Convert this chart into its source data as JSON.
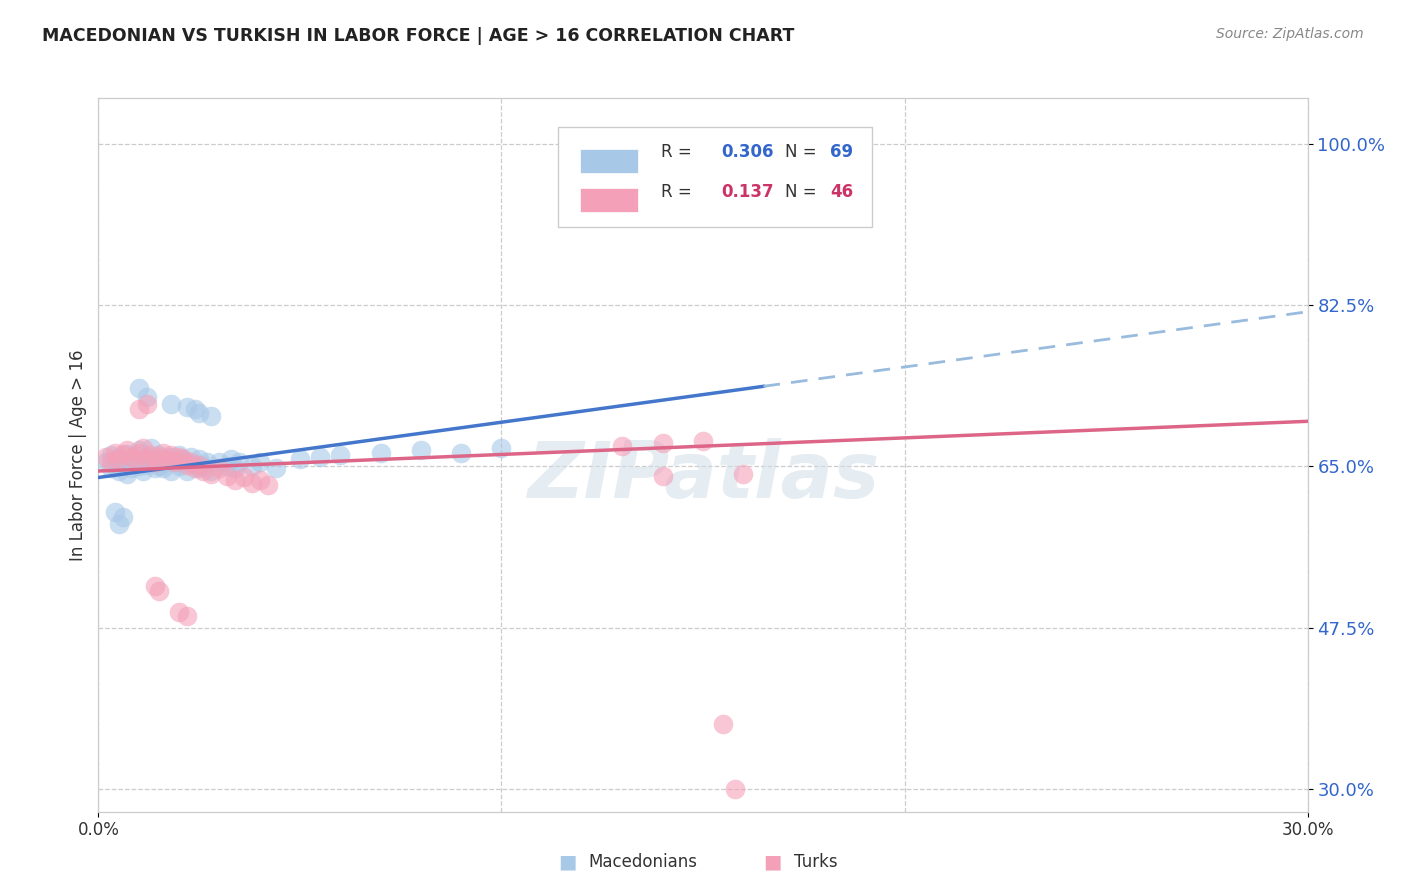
{
  "title": "MACEDONIAN VS TURKISH IN LABOR FORCE | AGE > 16 CORRELATION CHART",
  "source": "Source: ZipAtlas.com",
  "ylabel": "In Labor Force | Age > 16",
  "xlim": [
    0.0,
    0.3
  ],
  "ylim": [
    0.275,
    1.05
  ],
  "ytick_labels": [
    "30.0%",
    "47.5%",
    "65.0%",
    "82.5%",
    "100.0%"
  ],
  "ytick_values": [
    0.3,
    0.475,
    0.65,
    0.825,
    1.0
  ],
  "xtick_labels": [
    "0.0%",
    "30.0%"
  ],
  "xtick_values": [
    0.0,
    0.3
  ],
  "blue_color": "#a8c8e8",
  "pink_color": "#f4a0b8",
  "trend_blue_solid": "#4477cc",
  "trend_blue_dash": "#99bbdd",
  "trend_pink": "#dd6688",
  "watermark": "ZIPatlas",
  "blue_scatter": [
    [
      0.002,
      0.655
    ],
    [
      0.003,
      0.648
    ],
    [
      0.003,
      0.662
    ],
    [
      0.004,
      0.658
    ],
    [
      0.004,
      0.65
    ],
    [
      0.005,
      0.66
    ],
    [
      0.005,
      0.645
    ],
    [
      0.006,
      0.658
    ],
    [
      0.006,
      0.652
    ],
    [
      0.007,
      0.663
    ],
    [
      0.007,
      0.642
    ],
    [
      0.008,
      0.658
    ],
    [
      0.008,
      0.648
    ],
    [
      0.009,
      0.655
    ],
    [
      0.009,
      0.662
    ],
    [
      0.01,
      0.65
    ],
    [
      0.01,
      0.668
    ],
    [
      0.011,
      0.655
    ],
    [
      0.011,
      0.645
    ],
    [
      0.012,
      0.66
    ],
    [
      0.012,
      0.652
    ],
    [
      0.013,
      0.658
    ],
    [
      0.013,
      0.67
    ],
    [
      0.014,
      0.648
    ],
    [
      0.014,
      0.655
    ],
    [
      0.015,
      0.662
    ],
    [
      0.015,
      0.65
    ],
    [
      0.016,
      0.658
    ],
    [
      0.016,
      0.648
    ],
    [
      0.017,
      0.655
    ],
    [
      0.018,
      0.66
    ],
    [
      0.018,
      0.645
    ],
    [
      0.019,
      0.655
    ],
    [
      0.02,
      0.65
    ],
    [
      0.02,
      0.662
    ],
    [
      0.021,
      0.658
    ],
    [
      0.022,
      0.645
    ],
    [
      0.022,
      0.655
    ],
    [
      0.023,
      0.66
    ],
    [
      0.024,
      0.652
    ],
    [
      0.025,
      0.648
    ],
    [
      0.025,
      0.658
    ],
    [
      0.026,
      0.65
    ],
    [
      0.027,
      0.655
    ],
    [
      0.028,
      0.645
    ],
    [
      0.03,
      0.655
    ],
    [
      0.032,
      0.65
    ],
    [
      0.033,
      0.658
    ],
    [
      0.034,
      0.648
    ],
    [
      0.035,
      0.655
    ],
    [
      0.038,
      0.65
    ],
    [
      0.04,
      0.655
    ],
    [
      0.044,
      0.648
    ],
    [
      0.05,
      0.658
    ],
    [
      0.055,
      0.66
    ],
    [
      0.06,
      0.662
    ],
    [
      0.07,
      0.665
    ],
    [
      0.08,
      0.668
    ],
    [
      0.09,
      0.665
    ],
    [
      0.1,
      0.67
    ],
    [
      0.01,
      0.735
    ],
    [
      0.012,
      0.725
    ],
    [
      0.018,
      0.718
    ],
    [
      0.022,
      0.715
    ],
    [
      0.024,
      0.712
    ],
    [
      0.025,
      0.708
    ],
    [
      0.028,
      0.705
    ],
    [
      0.004,
      0.6
    ],
    [
      0.005,
      0.588
    ],
    [
      0.006,
      0.595
    ]
  ],
  "pink_scatter": [
    [
      0.002,
      0.66
    ],
    [
      0.003,
      0.655
    ],
    [
      0.004,
      0.665
    ],
    [
      0.005,
      0.658
    ],
    [
      0.006,
      0.663
    ],
    [
      0.007,
      0.668
    ],
    [
      0.008,
      0.66
    ],
    [
      0.009,
      0.658
    ],
    [
      0.01,
      0.665
    ],
    [
      0.011,
      0.67
    ],
    [
      0.012,
      0.658
    ],
    [
      0.013,
      0.662
    ],
    [
      0.014,
      0.655
    ],
    [
      0.015,
      0.66
    ],
    [
      0.016,
      0.665
    ],
    [
      0.017,
      0.658
    ],
    [
      0.018,
      0.662
    ],
    [
      0.019,
      0.655
    ],
    [
      0.02,
      0.66
    ],
    [
      0.021,
      0.658
    ],
    [
      0.022,
      0.652
    ],
    [
      0.023,
      0.655
    ],
    [
      0.024,
      0.648
    ],
    [
      0.025,
      0.652
    ],
    [
      0.026,
      0.645
    ],
    [
      0.028,
      0.642
    ],
    [
      0.03,
      0.648
    ],
    [
      0.032,
      0.64
    ],
    [
      0.034,
      0.635
    ],
    [
      0.036,
      0.638
    ],
    [
      0.038,
      0.632
    ],
    [
      0.04,
      0.635
    ],
    [
      0.042,
      0.63
    ],
    [
      0.01,
      0.712
    ],
    [
      0.012,
      0.718
    ],
    [
      0.014,
      0.52
    ],
    [
      0.015,
      0.515
    ],
    [
      0.02,
      0.492
    ],
    [
      0.022,
      0.488
    ],
    [
      0.13,
      0.672
    ],
    [
      0.14,
      0.675
    ],
    [
      0.15,
      0.678
    ],
    [
      0.155,
      0.37
    ],
    [
      0.158,
      0.3
    ],
    [
      0.14,
      0.64
    ],
    [
      0.16,
      0.642
    ]
  ]
}
